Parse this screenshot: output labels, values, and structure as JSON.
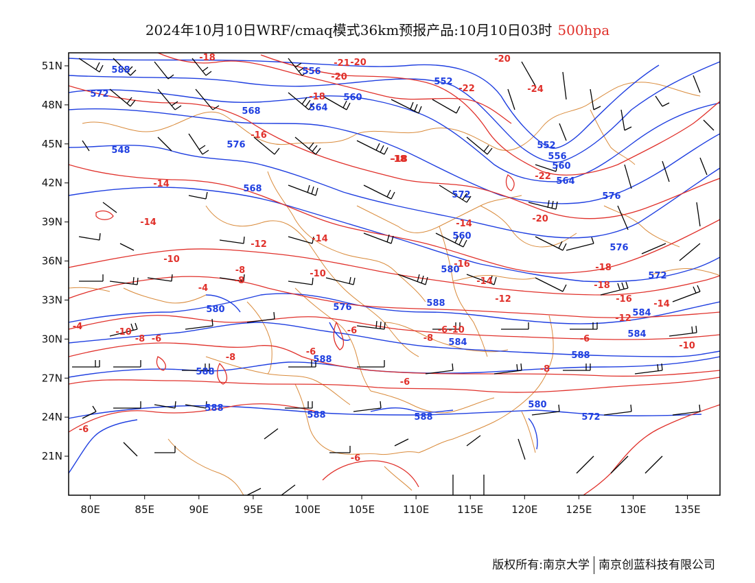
{
  "header": {
    "title": "2024年10月10日WRF/cmaq模式36km预报产品:10月10日03时",
    "level": "500hpa",
    "level_color": "#e0302a"
  },
  "map": {
    "lon_range": [
      78,
      138
    ],
    "lat_range": [
      18,
      52
    ],
    "lon_labels": [
      "80E",
      "85E",
      "90E",
      "95E",
      "100E",
      "105E",
      "110E",
      "115E",
      "120E",
      "125E",
      "130E",
      "135E"
    ],
    "lat_labels": [
      "51N",
      "48N",
      "45N",
      "42N",
      "39N",
      "36N",
      "33N",
      "30N",
      "27N",
      "24N",
      "21N"
    ],
    "colors": {
      "height": "#1f3fe0",
      "temperature": "#e0302a",
      "border": "#d98a3a",
      "wind": "#000000"
    },
    "height_labels": [
      "588",
      "556",
      "552",
      "560",
      "564",
      "568",
      "572",
      "576",
      "548",
      "552",
      "556",
      "560",
      "564",
      "576",
      "568",
      "572",
      "560",
      "576",
      "572",
      "580",
      "580",
      "576",
      "588",
      "584",
      "584",
      "584",
      "588",
      "588",
      "588",
      "588",
      "588",
      "588",
      "580",
      "572"
    ],
    "temperature_labels": [
      "-18",
      "-21",
      "-20",
      "-20",
      "-22",
      "-24",
      "-20",
      "-18",
      "-18",
      "-16",
      "-18",
      "-14",
      "-14",
      "-22",
      "-20",
      "-14",
      "-12",
      "-18",
      "-10",
      "-14",
      "-8",
      "-16",
      "-18",
      "-8",
      "-4",
      "-10",
      "-14",
      "-12",
      "-16",
      "-14",
      "-12",
      "-10",
      "-10",
      "-8",
      "-6",
      "-8",
      "-6",
      "-6",
      "-8",
      "-6",
      "-6",
      "-10",
      "-8",
      "-6",
      "-6",
      "-6",
      "-4"
    ]
  },
  "footer": {
    "left": "版权所有:南京大学",
    "right": "南京创蓝科技有限公司"
  }
}
